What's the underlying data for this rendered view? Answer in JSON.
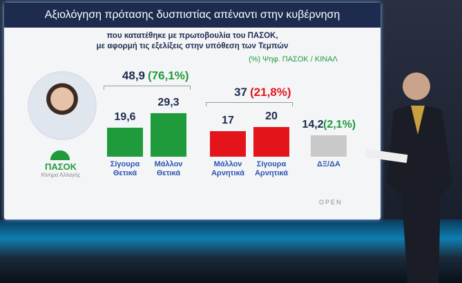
{
  "chart_data": {
    "type": "bar",
    "title": "Αξιολόγηση πρότασης δυσπιστίας απέναντι στην κυβέρνηση",
    "subtitle": [
      "που κατατέθηκε με πρωτοβουλία του ΠΑΣΟΚ,",
      "με αφορμή τις εξελίξεις στην υπόθεση των Τεμπών"
    ],
    "note": "(%) Ψηφ. ΠΑΣΟΚ / ΚΙΝΑΛ",
    "categories": [
      "Σίγουρα Θετικά",
      "Μάλλον Θετικά",
      "Μάλλον Αρνητικά",
      "Σίγουρα Αρνητικά",
      "ΔΞ/ΔΑ"
    ],
    "values": [
      19.6,
      29.3,
      17,
      20,
      14.2
    ],
    "value_labels": [
      "19,6",
      "29,3",
      "17",
      "20",
      "14,2"
    ],
    "colors": [
      "#1f9b3b",
      "#1f9b3b",
      "#e3151b",
      "#e3151b",
      "#c9c9c9"
    ],
    "dk_share": "(2,1%)",
    "groups": [
      {
        "total": "48,9",
        "share": "(76,1%)",
        "color": "#1f9b3b"
      },
      {
        "total": "37",
        "share": "(21,8%)",
        "color": "#e3151b"
      }
    ],
    "logo": {
      "name": "ΠΑΣΟΚ",
      "tagline": "Κίνημα Αλλαγής"
    },
    "channel": "OPEN"
  }
}
